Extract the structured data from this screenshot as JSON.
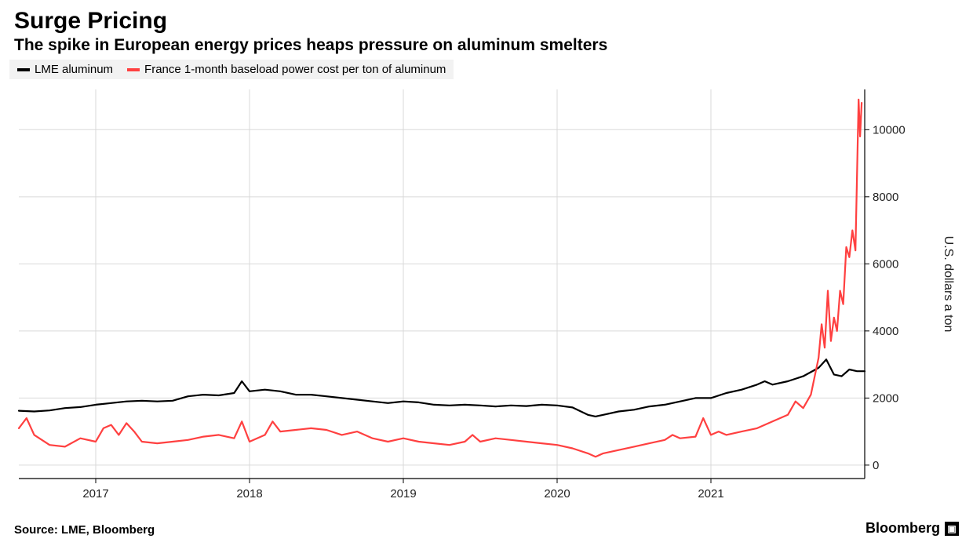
{
  "header": {
    "title": "Surge Pricing",
    "subtitle": "The spike in European energy prices heaps pressure on aluminum smelters"
  },
  "legend": {
    "items": [
      {
        "label": "LME aluminum",
        "color": "#000000"
      },
      {
        "label": "France 1-month baseload power cost per ton of aluminum",
        "color": "#ff4040"
      }
    ]
  },
  "chart": {
    "type": "line",
    "background_color": "#ffffff",
    "grid_color": "#d9d9d9",
    "axis_color": "#000000",
    "line_width": 2.2,
    "x": {
      "min": 2016.5,
      "max": 2022.0,
      "tick_labels": [
        "2017",
        "2018",
        "2019",
        "2020",
        "2021"
      ],
      "tick_positions": [
        2017,
        2018,
        2019,
        2020,
        2021
      ],
      "label_fontsize": 15
    },
    "y": {
      "min": -400,
      "max": 11200,
      "ticks": [
        0,
        2000,
        4000,
        6000,
        8000,
        10000
      ],
      "title": "U.S. dollars a ton",
      "label_fontsize": 15,
      "title_fontsize": 16
    },
    "series": [
      {
        "name": "lme_aluminum",
        "color": "#000000",
        "points": [
          [
            2016.5,
            1620
          ],
          [
            2016.6,
            1600
          ],
          [
            2016.7,
            1630
          ],
          [
            2016.8,
            1700
          ],
          [
            2016.9,
            1730
          ],
          [
            2017.0,
            1800
          ],
          [
            2017.1,
            1850
          ],
          [
            2017.2,
            1900
          ],
          [
            2017.3,
            1920
          ],
          [
            2017.4,
            1900
          ],
          [
            2017.5,
            1920
          ],
          [
            2017.6,
            2050
          ],
          [
            2017.7,
            2100
          ],
          [
            2017.8,
            2080
          ],
          [
            2017.9,
            2150
          ],
          [
            2017.95,
            2500
          ],
          [
            2018.0,
            2200
          ],
          [
            2018.1,
            2250
          ],
          [
            2018.2,
            2200
          ],
          [
            2018.3,
            2100
          ],
          [
            2018.4,
            2100
          ],
          [
            2018.5,
            2050
          ],
          [
            2018.6,
            2000
          ],
          [
            2018.7,
            1950
          ],
          [
            2018.8,
            1900
          ],
          [
            2018.9,
            1850
          ],
          [
            2019.0,
            1900
          ],
          [
            2019.1,
            1870
          ],
          [
            2019.2,
            1800
          ],
          [
            2019.3,
            1780
          ],
          [
            2019.4,
            1800
          ],
          [
            2019.5,
            1780
          ],
          [
            2019.6,
            1750
          ],
          [
            2019.7,
            1780
          ],
          [
            2019.8,
            1760
          ],
          [
            2019.9,
            1800
          ],
          [
            2020.0,
            1780
          ],
          [
            2020.1,
            1720
          ],
          [
            2020.2,
            1500
          ],
          [
            2020.25,
            1450
          ],
          [
            2020.3,
            1500
          ],
          [
            2020.4,
            1600
          ],
          [
            2020.5,
            1650
          ],
          [
            2020.6,
            1750
          ],
          [
            2020.7,
            1800
          ],
          [
            2020.8,
            1900
          ],
          [
            2020.9,
            2000
          ],
          [
            2021.0,
            2000
          ],
          [
            2021.1,
            2150
          ],
          [
            2021.2,
            2250
          ],
          [
            2021.3,
            2400
          ],
          [
            2021.35,
            2500
          ],
          [
            2021.4,
            2400
          ],
          [
            2021.5,
            2500
          ],
          [
            2021.6,
            2650
          ],
          [
            2021.7,
            2900
          ],
          [
            2021.75,
            3150
          ],
          [
            2021.8,
            2700
          ],
          [
            2021.85,
            2650
          ],
          [
            2021.9,
            2850
          ],
          [
            2021.95,
            2800
          ],
          [
            2022.0,
            2800
          ]
        ]
      },
      {
        "name": "france_power_cost_per_ton",
        "color": "#ff4040",
        "points": [
          [
            2016.5,
            1100
          ],
          [
            2016.55,
            1400
          ],
          [
            2016.6,
            900
          ],
          [
            2016.7,
            600
          ],
          [
            2016.8,
            550
          ],
          [
            2016.9,
            800
          ],
          [
            2017.0,
            700
          ],
          [
            2017.05,
            1100
          ],
          [
            2017.1,
            1200
          ],
          [
            2017.15,
            900
          ],
          [
            2017.2,
            1250
          ],
          [
            2017.25,
            1000
          ],
          [
            2017.3,
            700
          ],
          [
            2017.4,
            650
          ],
          [
            2017.5,
            700
          ],
          [
            2017.6,
            750
          ],
          [
            2017.7,
            850
          ],
          [
            2017.8,
            900
          ],
          [
            2017.9,
            800
          ],
          [
            2017.95,
            1300
          ],
          [
            2018.0,
            700
          ],
          [
            2018.1,
            900
          ],
          [
            2018.15,
            1300
          ],
          [
            2018.2,
            1000
          ],
          [
            2018.3,
            1050
          ],
          [
            2018.4,
            1100
          ],
          [
            2018.5,
            1050
          ],
          [
            2018.6,
            900
          ],
          [
            2018.7,
            1000
          ],
          [
            2018.8,
            800
          ],
          [
            2018.9,
            700
          ],
          [
            2019.0,
            800
          ],
          [
            2019.1,
            700
          ],
          [
            2019.2,
            650
          ],
          [
            2019.3,
            600
          ],
          [
            2019.4,
            700
          ],
          [
            2019.45,
            900
          ],
          [
            2019.5,
            700
          ],
          [
            2019.6,
            800
          ],
          [
            2019.7,
            750
          ],
          [
            2019.8,
            700
          ],
          [
            2019.9,
            650
          ],
          [
            2020.0,
            600
          ],
          [
            2020.1,
            500
          ],
          [
            2020.2,
            350
          ],
          [
            2020.25,
            250
          ],
          [
            2020.3,
            350
          ],
          [
            2020.4,
            450
          ],
          [
            2020.5,
            550
          ],
          [
            2020.6,
            650
          ],
          [
            2020.7,
            750
          ],
          [
            2020.75,
            900
          ],
          [
            2020.8,
            800
          ],
          [
            2020.9,
            850
          ],
          [
            2020.95,
            1400
          ],
          [
            2021.0,
            900
          ],
          [
            2021.05,
            1000
          ],
          [
            2021.1,
            900
          ],
          [
            2021.2,
            1000
          ],
          [
            2021.3,
            1100
          ],
          [
            2021.4,
            1300
          ],
          [
            2021.5,
            1500
          ],
          [
            2021.55,
            1900
          ],
          [
            2021.6,
            1700
          ],
          [
            2021.65,
            2100
          ],
          [
            2021.7,
            3200
          ],
          [
            2021.72,
            4200
          ],
          [
            2021.74,
            3500
          ],
          [
            2021.76,
            5200
          ],
          [
            2021.78,
            3700
          ],
          [
            2021.8,
            4400
          ],
          [
            2021.82,
            4000
          ],
          [
            2021.84,
            5200
          ],
          [
            2021.86,
            4800
          ],
          [
            2021.88,
            6500
          ],
          [
            2021.9,
            6200
          ],
          [
            2021.92,
            7000
          ],
          [
            2021.94,
            6400
          ],
          [
            2021.96,
            10900
          ],
          [
            2021.97,
            9800
          ],
          [
            2021.98,
            10800
          ]
        ]
      }
    ]
  },
  "footer": {
    "source": "Source: LME, Bloomberg",
    "brand": "Bloomberg",
    "brand_glyph": "▣"
  }
}
